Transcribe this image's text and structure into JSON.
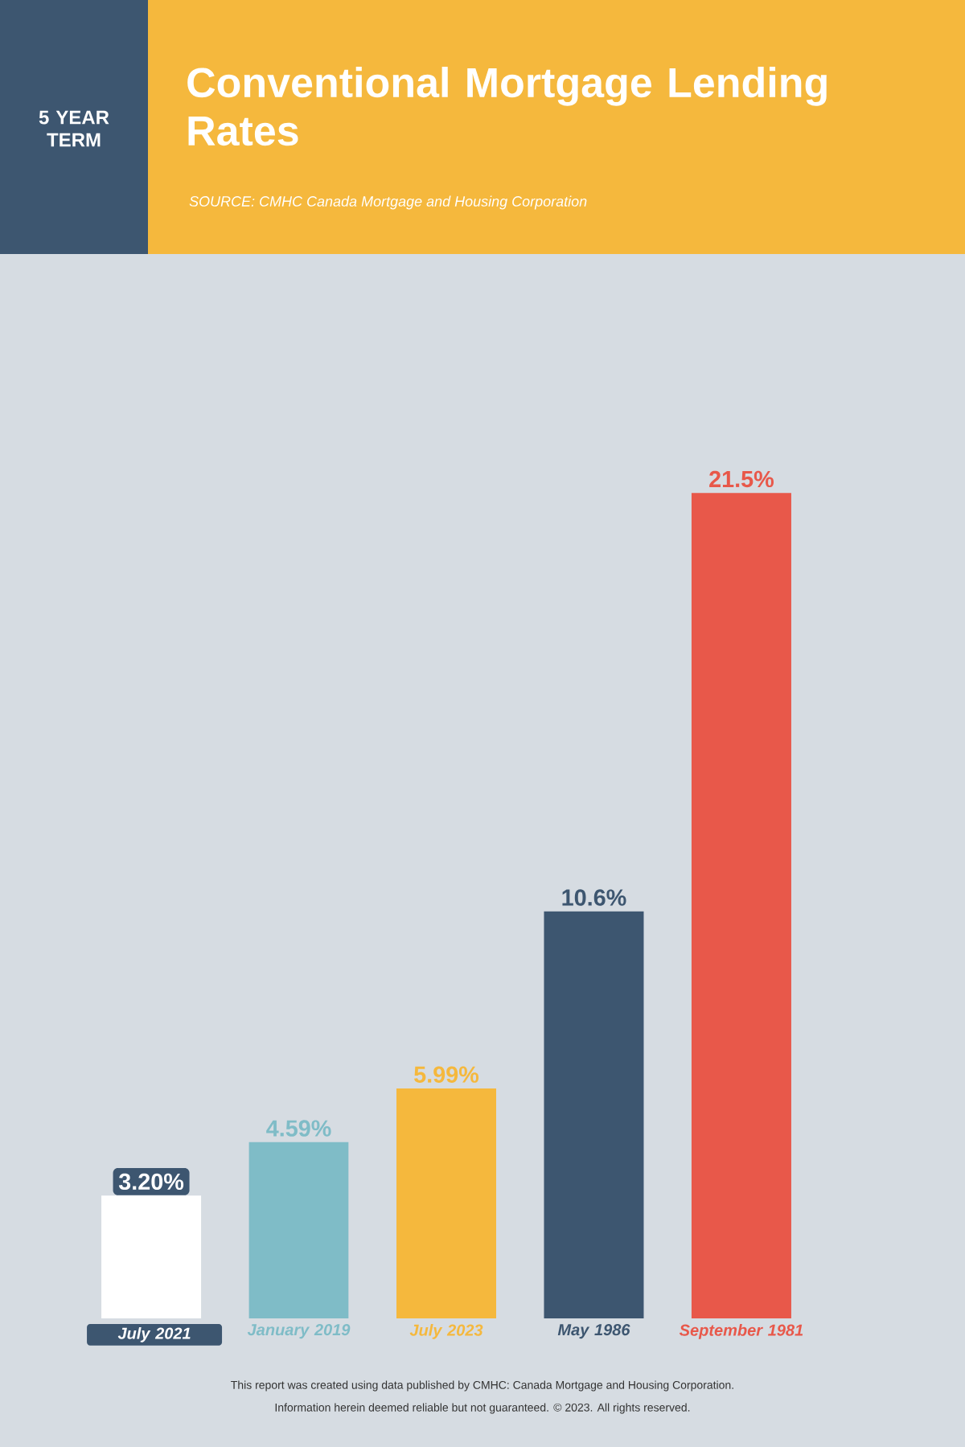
{
  "chart_data": {
    "type": "bar",
    "title": "Conventional Mortgage Lending Rates",
    "subtitle": "5 YEAR TERM",
    "categories": [
      "July 2021",
      "January 2019",
      "July 2023",
      "May 1986",
      "September 1981"
    ],
    "values": [
      3.2,
      4.59,
      5.99,
      10.6,
      21.5
    ],
    "value_labels": [
      "3.20%",
      "4.59%",
      "5.99%",
      "10.6%",
      "21.5%"
    ],
    "colors": [
      "#ffffff",
      "#7fbcc7",
      "#f5b83d",
      "#3d5670",
      "#e8584a"
    ],
    "annotations": [
      "SOURCE: CMHC Canada Mortgage and Housing Corporation",
      "This report was created using data published by CMHC: Canada Mortgage and Housing Corporation.",
      "Information herein deemed reliable but not guaranteed. © 2023. All rights reserved."
    ]
  }
}
